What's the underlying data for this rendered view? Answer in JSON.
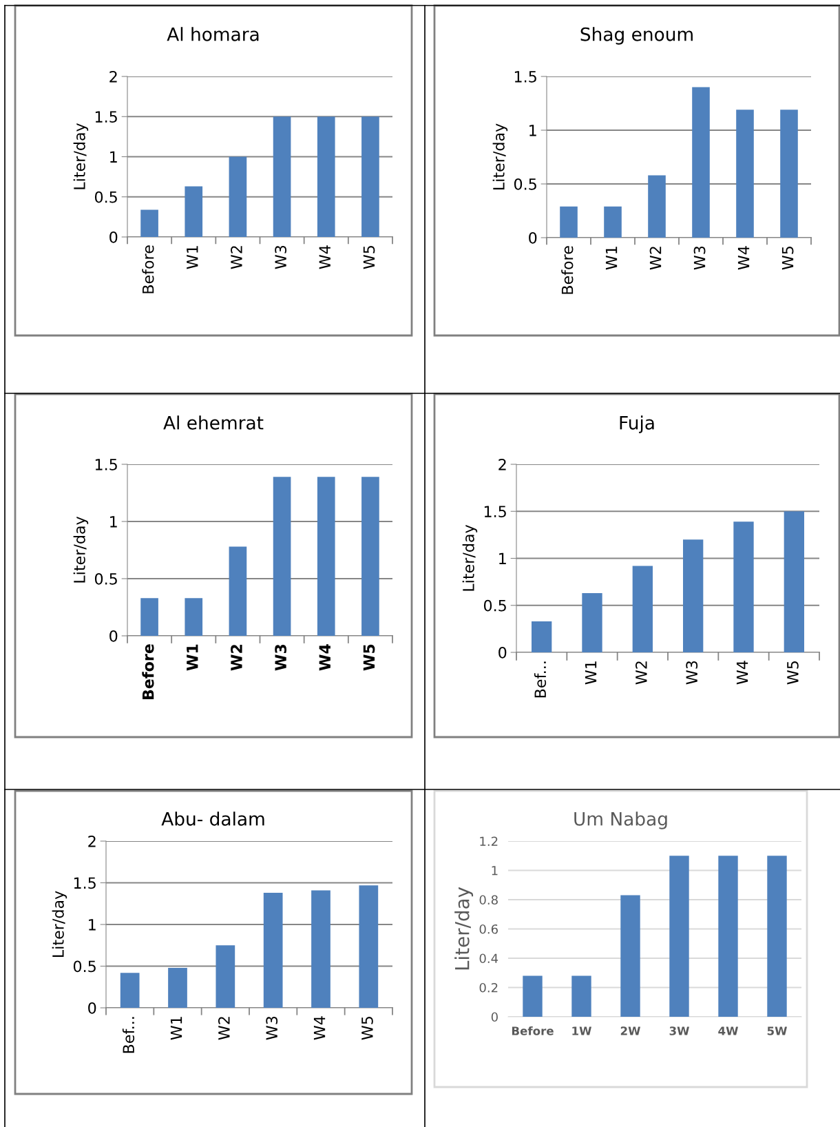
{
  "chart_data": [
    {
      "type": "bar",
      "title": "Al homara",
      "ylabel": "Liter/day",
      "categories": [
        "Before",
        "W1",
        "W2",
        "W3",
        "W4",
        "W5"
      ],
      "values": [
        0.34,
        0.63,
        1.0,
        1.5,
        1.5,
        1.5
      ],
      "color": "#4f81bd",
      "ylim": [
        0,
        2
      ],
      "yticks": [
        0,
        0.5,
        1,
        1.5,
        2
      ],
      "grid": "y"
    },
    {
      "type": "bar",
      "title": "Shag enoum",
      "ylabel": "Liter/day",
      "categories": [
        "Before",
        "W1",
        "W2",
        "W3",
        "W4",
        "W5"
      ],
      "values": [
        0.29,
        0.29,
        0.58,
        1.4,
        1.19,
        1.19
      ],
      "color": "#4f81bd",
      "ylim": [
        0,
        1.5
      ],
      "yticks": [
        0,
        0.5,
        1,
        1.5
      ],
      "grid": "y"
    },
    {
      "type": "bar",
      "title": "Al ehemrat",
      "ylabel": "Liter/day",
      "categories": [
        "Before",
        "W1",
        "W2",
        "W3",
        "W4",
        "W5"
      ],
      "values": [
        0.33,
        0.33,
        0.78,
        1.39,
        1.39,
        1.39
      ],
      "color": "#4f81bd",
      "ylim": [
        0,
        1.5
      ],
      "yticks": [
        0,
        0.5,
        1,
        1.5
      ],
      "grid": "y"
    },
    {
      "type": "bar",
      "title": "Fuja",
      "ylabel": "Liter/day",
      "categories": [
        "Bef...",
        "W1",
        "W2",
        "W3",
        "W4",
        "W5"
      ],
      "values": [
        0.33,
        0.63,
        0.92,
        1.2,
        1.39,
        1.5
      ],
      "color": "#4f81bd",
      "ylim": [
        0,
        2
      ],
      "yticks": [
        0,
        0.5,
        1,
        1.5,
        2
      ],
      "grid": "y"
    },
    {
      "type": "bar",
      "title": "Abu- dalam",
      "ylabel": "Liter/day",
      "categories": [
        "Bef...",
        "W1",
        "W2",
        "W3",
        "W4",
        "W5"
      ],
      "values": [
        0.42,
        0.48,
        0.75,
        1.38,
        1.41,
        1.47
      ],
      "color": "#4f81bd",
      "ylim": [
        0,
        2
      ],
      "yticks": [
        0,
        0.5,
        1,
        1.5,
        2
      ],
      "grid": "y"
    },
    {
      "type": "bar",
      "title": "Um Nabag",
      "ylabel": "Liter/day",
      "categories": [
        "Before",
        "1W",
        "2W",
        "3W",
        "4W",
        "5W"
      ],
      "values": [
        0.28,
        0.28,
        0.83,
        1.1,
        1.1,
        1.1
      ],
      "color": "#4f81bd",
      "ylim": [
        0,
        1.2
      ],
      "yticks": [
        0,
        0.2,
        0.4,
        0.6,
        0.8,
        1,
        1.2
      ],
      "grid": "y"
    }
  ]
}
